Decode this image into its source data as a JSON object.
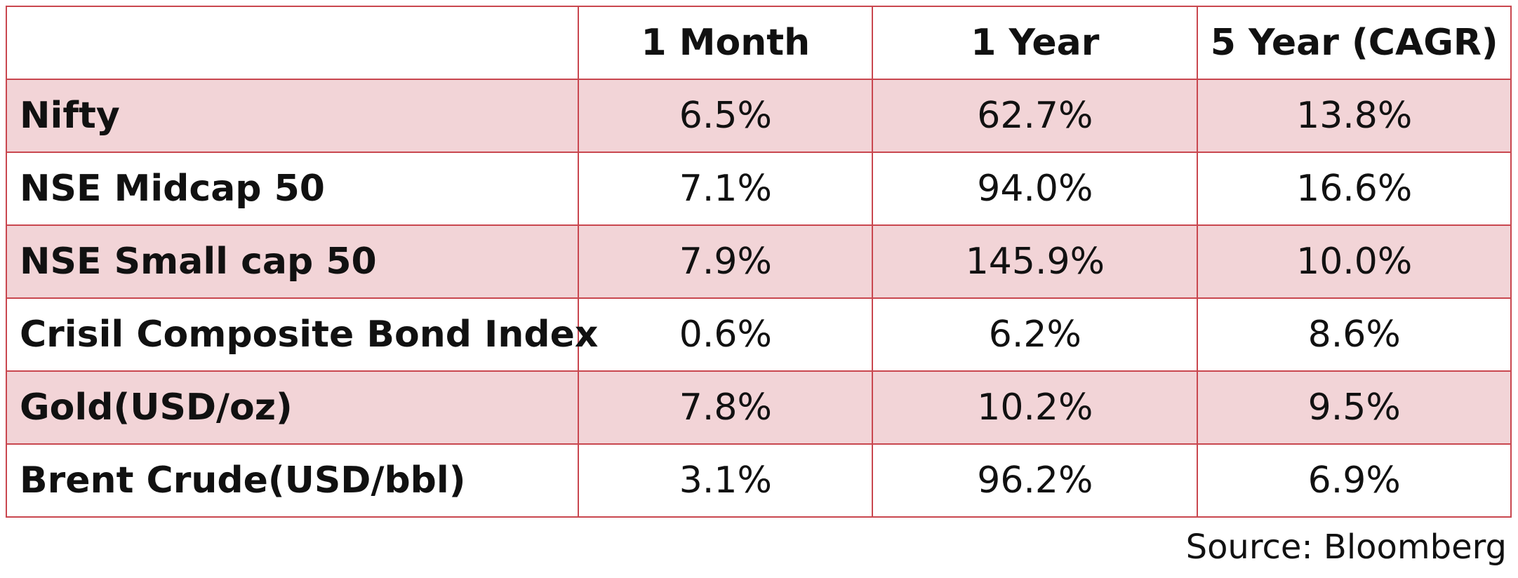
{
  "table": {
    "columns": [
      "",
      "1 Month",
      "1 Year",
      "5 Year (CAGR)"
    ],
    "rows": [
      {
        "label": "Nifty",
        "values": [
          "6.5%",
          "62.7%",
          "13.8%"
        ]
      },
      {
        "label": "NSE Midcap 50",
        "values": [
          "7.1%",
          "94.0%",
          "16.6%"
        ]
      },
      {
        "label": "NSE Small cap 50",
        "values": [
          "7.9%",
          "145.9%",
          "10.0%"
        ]
      },
      {
        "label": "Crisil Composite Bond Index",
        "values": [
          "0.6%",
          "6.2%",
          "8.6%"
        ]
      },
      {
        "label": "Gold(USD/oz)",
        "values": [
          "7.8%",
          "10.2%",
          "9.5%"
        ]
      },
      {
        "label": "Brent Crude(USD/bbl)",
        "values": [
          "3.1%",
          "96.2%",
          "6.9%"
        ]
      }
    ]
  },
  "source": "Source: Bloomberg",
  "colors": {
    "border": "#c9474f",
    "shaded_row": "#f2d4d7",
    "text": "#111111"
  }
}
